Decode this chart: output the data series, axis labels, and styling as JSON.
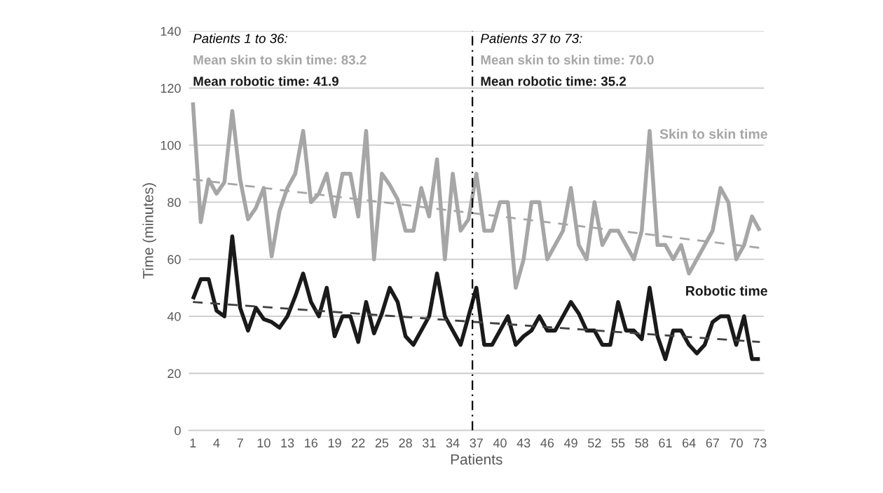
{
  "chart_data": {
    "type": "line",
    "xlabel": "Patients",
    "ylabel": "Time (minutes)",
    "x": [
      1,
      2,
      3,
      4,
      5,
      6,
      7,
      8,
      9,
      10,
      11,
      12,
      13,
      14,
      15,
      16,
      17,
      18,
      19,
      20,
      21,
      22,
      23,
      24,
      25,
      26,
      27,
      28,
      29,
      30,
      31,
      32,
      33,
      34,
      35,
      36,
      37,
      38,
      39,
      40,
      41,
      42,
      43,
      44,
      45,
      46,
      47,
      48,
      49,
      50,
      51,
      52,
      53,
      54,
      55,
      56,
      57,
      58,
      59,
      60,
      61,
      62,
      63,
      64,
      65,
      66,
      67,
      68,
      69,
      70,
      71,
      72,
      73
    ],
    "xlim": [
      0.5,
      73.5
    ],
    "xticks": [
      1,
      4,
      7,
      10,
      13,
      16,
      19,
      22,
      25,
      28,
      31,
      34,
      37,
      40,
      43,
      46,
      49,
      52,
      55,
      58,
      61,
      64,
      67,
      70,
      73
    ],
    "ylim": [
      0,
      140
    ],
    "yticks": [
      0,
      20,
      40,
      60,
      80,
      100,
      120,
      140
    ],
    "grid": "y",
    "marker": "none",
    "series": [
      {
        "name": "Skin to skin time",
        "color": "#a6a6a6",
        "line_style": "solid",
        "values": [
          115,
          73,
          88,
          83,
          87,
          112,
          88,
          74,
          78,
          85,
          61,
          77,
          85,
          90,
          105,
          80,
          83,
          90,
          75,
          90,
          90,
          75,
          105,
          60,
          90,
          86,
          81,
          70,
          70,
          85,
          75,
          95,
          60,
          90,
          70,
          74,
          90,
          70,
          70,
          80,
          80,
          50,
          60,
          80,
          80,
          60,
          65,
          70,
          85,
          65,
          60,
          80,
          65,
          70,
          70,
          65,
          60,
          70,
          105,
          65,
          65,
          60,
          65,
          55,
          60,
          65,
          70,
          85,
          80,
          60,
          65,
          75,
          70
        ]
      },
      {
        "name": "Robotic time",
        "color": "#1a1a1a",
        "line_style": "solid",
        "values": [
          46,
          53,
          53,
          42,
          40,
          68,
          43,
          35,
          43,
          39,
          38,
          36,
          40,
          47,
          55,
          45,
          40,
          50,
          33,
          40,
          40,
          31,
          45,
          34,
          41,
          50,
          45,
          33,
          30,
          35,
          40,
          55,
          40,
          35,
          30,
          40,
          50,
          30,
          30,
          35,
          40,
          30,
          33,
          35,
          40,
          35,
          35,
          40,
          45,
          41,
          35,
          35,
          30,
          30,
          45,
          35,
          35,
          32,
          50,
          33,
          25,
          35,
          35,
          30,
          27,
          30,
          38,
          40,
          40,
          30,
          40,
          25,
          25
        ]
      },
      {
        "type": "line",
        "color": "#a6a6a6",
        "line_style": "dashed",
        "values": [
          88,
          null,
          null,
          null,
          null,
          null,
          null,
          null,
          null,
          null,
          null,
          null,
          null,
          null,
          null,
          null,
          null,
          null,
          null,
          null,
          null,
          null,
          null,
          null,
          null,
          null,
          null,
          null,
          null,
          null,
          null,
          null,
          null,
          null,
          null,
          null,
          null,
          null,
          null,
          null,
          null,
          null,
          null,
          null,
          null,
          null,
          null,
          null,
          null,
          null,
          null,
          null,
          null,
          null,
          null,
          null,
          null,
          null,
          null,
          null,
          null,
          null,
          null,
          null,
          null,
          null,
          null,
          null,
          null,
          null,
          null,
          null,
          64
        ]
      },
      {
        "type": "line",
        "color": "#404040",
        "line_style": "dashed",
        "values": [
          45,
          null,
          null,
          null,
          null,
          null,
          null,
          null,
          null,
          null,
          null,
          null,
          null,
          null,
          null,
          null,
          null,
          null,
          null,
          null,
          null,
          null,
          null,
          null,
          null,
          null,
          null,
          null,
          null,
          null,
          null,
          null,
          null,
          null,
          null,
          null,
          null,
          null,
          null,
          null,
          null,
          null,
          null,
          null,
          null,
          null,
          null,
          null,
          null,
          null,
          null,
          null,
          null,
          null,
          null,
          null,
          null,
          null,
          null,
          null,
          null,
          null,
          null,
          null,
          null,
          null,
          null,
          null,
          null,
          null,
          null,
          null,
          31
        ]
      }
    ],
    "ref_lines": [
      {
        "axis": "x",
        "value": 36.5,
        "color": "#000000",
        "line_style": "dashdot"
      }
    ],
    "annotations": [
      "Patients 1 to 36:",
      "Mean skin to skin time: 83.2",
      "Mean robotic time: 41.9",
      "Patients 37 to 73:",
      "Mean skin to skin time: 70.0",
      "Mean robotic time: 35.2"
    ]
  }
}
